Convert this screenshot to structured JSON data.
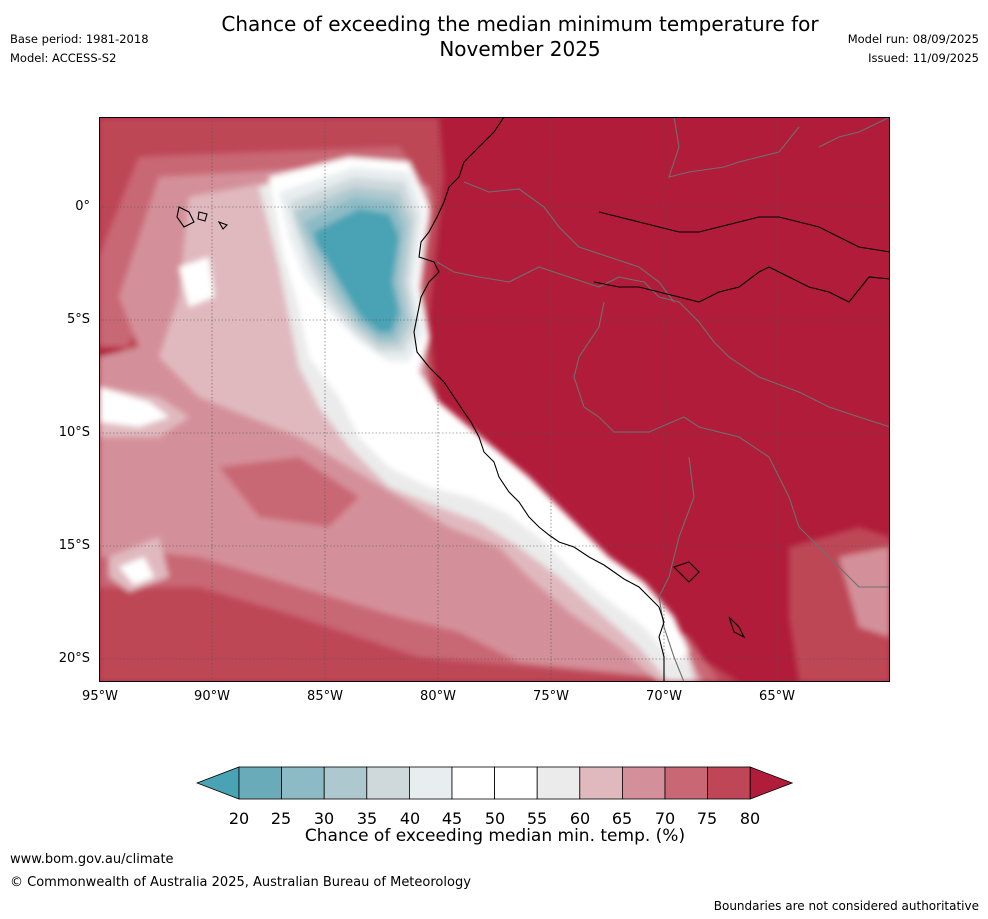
{
  "title_line1": "Chance of exceeding the median minimum temperature for",
  "title_line2": "November 2025",
  "meta_left": {
    "base_period": "Base period: 1981-2018",
    "model": "Model: ACCESS-S2"
  },
  "meta_right": {
    "model_run": "Model run: 08/09/2025",
    "issued": "Issued: 11/09/2025"
  },
  "lat_ticks": [
    "0°",
    "5°S",
    "10°S",
    "15°S",
    "20°S"
  ],
  "lon_ticks": [
    "95°W",
    "90°W",
    "85°W",
    "80°W",
    "75°W",
    "70°W",
    "65°W"
  ],
  "colorbar": {
    "labels": [
      "20",
      "25",
      "30",
      "35",
      "40",
      "45",
      "50",
      "55",
      "60",
      "65",
      "70",
      "75",
      "80"
    ],
    "title": "Chance of exceeding median min. temp. (%)",
    "colors": [
      "#4aa3b4",
      "#6aabb9",
      "#8cbbc6",
      "#adc9cf",
      "#cfd9dc",
      "#e8eef0",
      "#ffffff",
      "#ffffff",
      "#ebebeb",
      "#e0b9bf",
      "#d4909a",
      "#c96874",
      "#be4656",
      "#b01c39"
    ]
  },
  "footer": {
    "url": "www.bom.gov.au/climate",
    "copyright": "© Commonwealth of Australia 2025, Australian Bureau of Meteorology",
    "disclaimer": "Boundaries are not considered authoritative"
  }
}
